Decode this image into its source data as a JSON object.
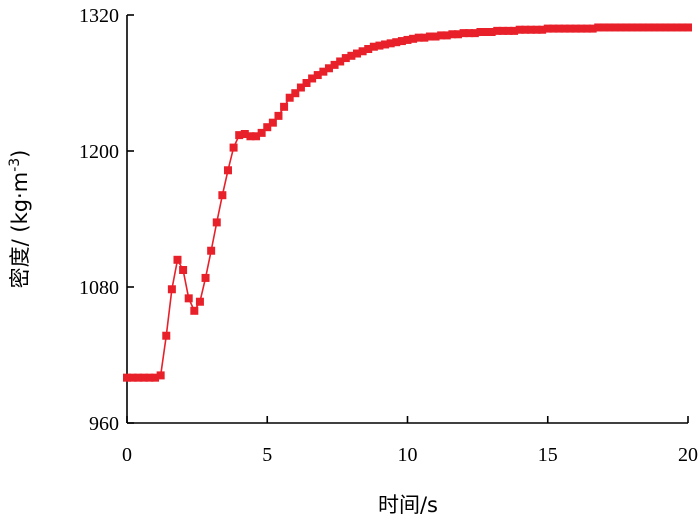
{
  "chart_data": {
    "type": "line",
    "xlabel": "时间/s",
    "ylabel": "密度/ (kg·m-3)",
    "xlim": [
      0,
      20
    ],
    "ylim": [
      960,
      1320
    ],
    "xticks": [
      "0",
      "5",
      "10",
      "15",
      "20"
    ],
    "yticks": [
      "960",
      "1080",
      "1200",
      "1320"
    ],
    "grid": false,
    "color": "#e8202a",
    "marker": "square",
    "series": [
      {
        "x": [
          0.0,
          0.2,
          0.4,
          0.6,
          0.8,
          1.0,
          1.2,
          1.4,
          1.6,
          1.8,
          2.0,
          2.2,
          2.4,
          2.6,
          2.8,
          3.0,
          3.2,
          3.4,
          3.6,
          3.8,
          4.0,
          4.2,
          4.4,
          4.6,
          4.8,
          5.0,
          5.2,
          5.4,
          5.6,
          5.8,
          6.0,
          6.2,
          6.4,
          6.6,
          6.8,
          7.0,
          7.2,
          7.4,
          7.6,
          7.8,
          8.0,
          8.2,
          8.4,
          8.6,
          8.8,
          9.0,
          9.2,
          9.4,
          9.6,
          9.8,
          10.0,
          10.2,
          10.4,
          10.6,
          10.8,
          11.0,
          11.2,
          11.4,
          11.6,
          11.8,
          12.0,
          12.2,
          12.4,
          12.6,
          12.8,
          13.0,
          13.2,
          13.4,
          13.6,
          13.8,
          14.0,
          14.2,
          14.4,
          14.6,
          14.8,
          15.0,
          15.2,
          15.4,
          15.6,
          15.8,
          16.0,
          16.2,
          16.4,
          16.6,
          16.8,
          17.0,
          17.2,
          17.4,
          17.6,
          17.8,
          18.0,
          18.2,
          18.4,
          18.6,
          18.8,
          19.0,
          19.2,
          19.4,
          19.6,
          19.8,
          20.0
        ],
        "y": [
          1000,
          1000,
          1000,
          1000,
          1000,
          1000,
          1002,
          1037,
          1078,
          1104,
          1095,
          1070,
          1059,
          1067,
          1088,
          1112,
          1137,
          1161,
          1183,
          1203,
          1214,
          1215,
          1213,
          1213,
          1216,
          1221,
          1225,
          1231,
          1239,
          1247,
          1251,
          1256,
          1260,
          1264,
          1267,
          1270,
          1273,
          1276,
          1279,
          1282,
          1284,
          1286,
          1288,
          1290,
          1292,
          1293,
          1294,
          1295,
          1296,
          1297,
          1298,
          1299,
          1300,
          1300,
          1301,
          1301,
          1302,
          1302,
          1303,
          1303,
          1304,
          1304,
          1304,
          1305,
          1305,
          1305,
          1306,
          1306,
          1306,
          1306,
          1307,
          1307,
          1307,
          1307,
          1307,
          1308,
          1308,
          1308,
          1308,
          1308,
          1308,
          1308,
          1308,
          1308,
          1309,
          1309,
          1309,
          1309,
          1309,
          1309,
          1309,
          1309,
          1309,
          1309,
          1309,
          1309,
          1309,
          1309,
          1309,
          1309,
          1309
        ]
      }
    ]
  }
}
